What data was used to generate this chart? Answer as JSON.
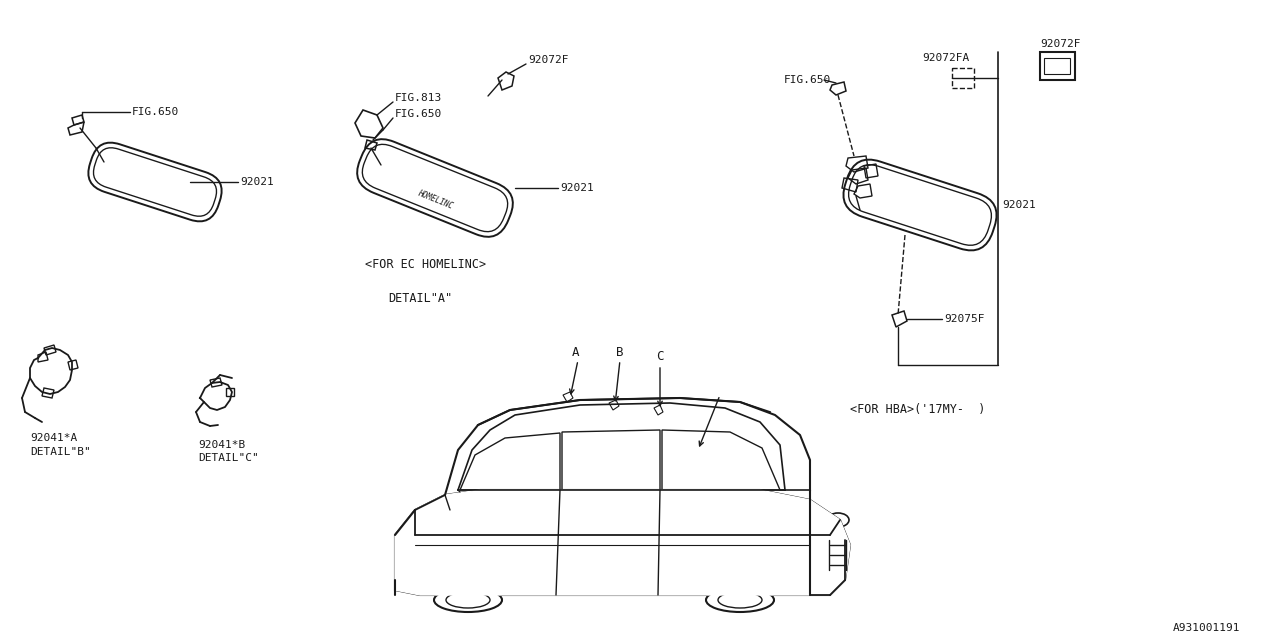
{
  "bg_color": "#f5f5f5",
  "line_color": "#1a1a1a",
  "text_color": "#1a1a1a",
  "diagram_id": "A931001191",
  "labels": {
    "detail_a": "DETAIL\"A\"",
    "detail_b": "DETAIL\"B\"",
    "detail_c": "DETAIL\"C\"",
    "for_ec": "<FOR EC HOMELINC>",
    "for_hba": "<FOR HBA>('17MY-  )",
    "fig650": "FIG.650",
    "fig813": "FIG.813",
    "92021": "92021",
    "92041A": "92041*A",
    "92041B": "92041*B",
    "92072F": "92072F",
    "92072FA": "92072FA",
    "92075F": "92075F"
  }
}
